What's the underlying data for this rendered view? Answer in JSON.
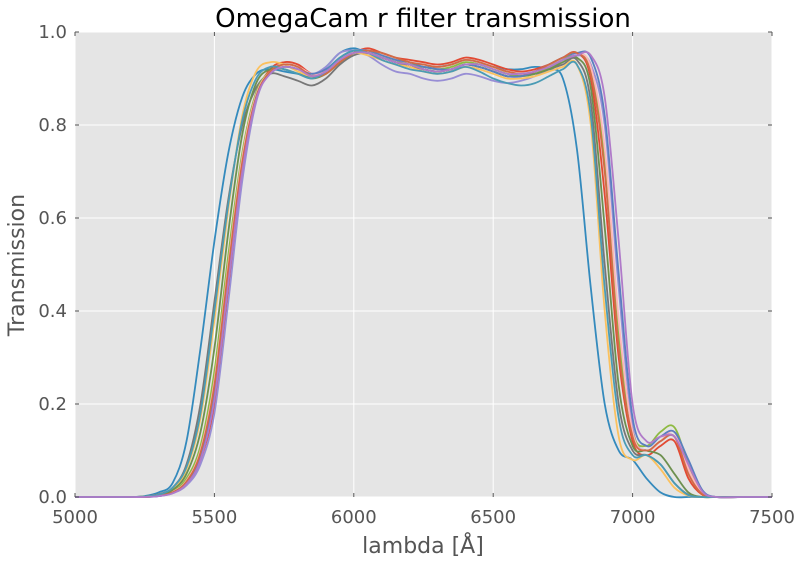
{
  "chart_data": {
    "type": "line",
    "title": "OmegaCam r filter transmission",
    "xlabel": "lambda [Å]",
    "ylabel": "Transmission",
    "xlim": [
      5000,
      7500
    ],
    "ylim": [
      0.0,
      1.0
    ],
    "xticks": [
      5000,
      5500,
      6000,
      6500,
      7000,
      7500
    ],
    "yticks": [
      0.0,
      0.2,
      0.4,
      0.6,
      0.8,
      1.0
    ],
    "xtick_labels": [
      "5000",
      "5500",
      "6000",
      "6500",
      "7000",
      "7500"
    ],
    "ytick_labels": [
      "0.0",
      "0.2",
      "0.4",
      "0.6",
      "0.8",
      "1.0"
    ],
    "grid": true,
    "background": "#e5e5e5",
    "x": [
      5000,
      5100,
      5200,
      5250,
      5300,
      5350,
      5400,
      5450,
      5500,
      5550,
      5600,
      5650,
      5700,
      5750,
      5800,
      5850,
      5900,
      5950,
      6000,
      6050,
      6100,
      6150,
      6200,
      6250,
      6300,
      6350,
      6400,
      6450,
      6500,
      6550,
      6600,
      6650,
      6700,
      6750,
      6800,
      6850,
      6900,
      6950,
      7000,
      7050,
      7100,
      7150,
      7200,
      7250,
      7300,
      7400,
      7500
    ],
    "series": [
      {
        "color": "#348abd",
        "values": [
          0.0,
          0.0,
          0.0,
          0.002,
          0.01,
          0.03,
          0.12,
          0.32,
          0.55,
          0.74,
          0.86,
          0.91,
          0.92,
          0.915,
          0.91,
          0.905,
          0.925,
          0.955,
          0.965,
          0.955,
          0.945,
          0.935,
          0.93,
          0.925,
          0.925,
          0.93,
          0.94,
          0.935,
          0.925,
          0.92,
          0.92,
          0.925,
          0.92,
          0.9,
          0.75,
          0.45,
          0.2,
          0.1,
          0.08,
          0.04,
          0.01,
          0.0,
          0.0,
          0.0,
          0.0,
          0.0,
          0.0
        ]
      },
      {
        "color": "#e24a33",
        "values": [
          0.0,
          0.0,
          0.0,
          0.0,
          0.003,
          0.01,
          0.03,
          0.08,
          0.2,
          0.45,
          0.7,
          0.86,
          0.92,
          0.935,
          0.93,
          0.91,
          0.915,
          0.935,
          0.955,
          0.965,
          0.955,
          0.945,
          0.94,
          0.935,
          0.93,
          0.935,
          0.945,
          0.94,
          0.93,
          0.92,
          0.915,
          0.92,
          0.93,
          0.945,
          0.955,
          0.9,
          0.65,
          0.3,
          0.12,
          0.09,
          0.11,
          0.12,
          0.04,
          0.005,
          0.0,
          0.0,
          0.0
        ]
      },
      {
        "color": "#988ed5",
        "values": [
          0.0,
          0.0,
          0.0,
          0.0,
          0.002,
          0.008,
          0.025,
          0.07,
          0.18,
          0.42,
          0.68,
          0.85,
          0.915,
          0.93,
          0.925,
          0.91,
          0.925,
          0.955,
          0.96,
          0.95,
          0.93,
          0.915,
          0.91,
          0.9,
          0.895,
          0.9,
          0.91,
          0.905,
          0.895,
          0.89,
          0.895,
          0.905,
          0.92,
          0.94,
          0.95,
          0.93,
          0.8,
          0.45,
          0.15,
          0.1,
          0.12,
          0.13,
          0.06,
          0.01,
          0.0,
          0.0,
          0.0
        ]
      },
      {
        "color": "#777777",
        "values": [
          0.0,
          0.0,
          0.0,
          0.001,
          0.006,
          0.02,
          0.07,
          0.2,
          0.42,
          0.64,
          0.8,
          0.88,
          0.91,
          0.905,
          0.895,
          0.885,
          0.9,
          0.93,
          0.95,
          0.955,
          0.945,
          0.935,
          0.925,
          0.92,
          0.915,
          0.92,
          0.93,
          0.925,
          0.915,
          0.905,
          0.905,
          0.91,
          0.92,
          0.93,
          0.94,
          0.85,
          0.5,
          0.2,
          0.1,
          0.09,
          0.07,
          0.03,
          0.005,
          0.0,
          0.0,
          0.0,
          0.0
        ]
      },
      {
        "color": "#fbc15e",
        "values": [
          0.0,
          0.0,
          0.0,
          0.001,
          0.005,
          0.018,
          0.06,
          0.17,
          0.38,
          0.62,
          0.82,
          0.915,
          0.935,
          0.93,
          0.915,
          0.905,
          0.915,
          0.94,
          0.955,
          0.95,
          0.94,
          0.93,
          0.925,
          0.915,
          0.91,
          0.915,
          0.925,
          0.92,
          0.91,
          0.9,
          0.9,
          0.905,
          0.915,
          0.925,
          0.93,
          0.8,
          0.4,
          0.13,
          0.08,
          0.09,
          0.06,
          0.02,
          0.003,
          0.0,
          0.0,
          0.0,
          0.0
        ]
      },
      {
        "color": "#8eba42",
        "values": [
          0.0,
          0.0,
          0.0,
          0.0,
          0.003,
          0.012,
          0.04,
          0.11,
          0.27,
          0.52,
          0.74,
          0.87,
          0.915,
          0.925,
          0.92,
          0.905,
          0.91,
          0.935,
          0.955,
          0.96,
          0.95,
          0.94,
          0.93,
          0.925,
          0.92,
          0.925,
          0.935,
          0.93,
          0.92,
          0.91,
          0.905,
          0.91,
          0.925,
          0.94,
          0.955,
          0.92,
          0.72,
          0.35,
          0.14,
          0.11,
          0.14,
          0.15,
          0.07,
          0.01,
          0.0,
          0.0,
          0.0
        ]
      },
      {
        "color": "#ffb5b8",
        "values": [
          0.0,
          0.0,
          0.0,
          0.0,
          0.003,
          0.011,
          0.035,
          0.1,
          0.25,
          0.5,
          0.73,
          0.865,
          0.915,
          0.93,
          0.925,
          0.91,
          0.915,
          0.94,
          0.96,
          0.96,
          0.95,
          0.94,
          0.935,
          0.93,
          0.925,
          0.93,
          0.94,
          0.935,
          0.925,
          0.915,
          0.91,
          0.915,
          0.93,
          0.945,
          0.955,
          0.925,
          0.75,
          0.38,
          0.14,
          0.1,
          0.12,
          0.14,
          0.06,
          0.008,
          0.0,
          0.0,
          0.0
        ]
      },
      {
        "color": "#6d904f",
        "values": [
          0.0,
          0.0,
          0.0,
          0.001,
          0.004,
          0.015,
          0.05,
          0.14,
          0.32,
          0.57,
          0.78,
          0.89,
          0.92,
          0.92,
          0.91,
          0.9,
          0.91,
          0.935,
          0.955,
          0.955,
          0.945,
          0.935,
          0.93,
          0.92,
          0.915,
          0.92,
          0.93,
          0.925,
          0.915,
          0.905,
          0.905,
          0.91,
          0.92,
          0.935,
          0.945,
          0.88,
          0.58,
          0.24,
          0.11,
          0.1,
          0.09,
          0.05,
          0.01,
          0.0,
          0.0,
          0.0,
          0.0
        ]
      },
      {
        "color": "#5a7fc0",
        "values": [
          0.0,
          0.0,
          0.0,
          0.0,
          0.002,
          0.009,
          0.03,
          0.085,
          0.22,
          0.47,
          0.71,
          0.86,
          0.91,
          0.925,
          0.92,
          0.91,
          0.92,
          0.945,
          0.96,
          0.96,
          0.95,
          0.94,
          0.935,
          0.925,
          0.92,
          0.92,
          0.93,
          0.925,
          0.915,
          0.905,
          0.905,
          0.915,
          0.93,
          0.945,
          0.955,
          0.945,
          0.82,
          0.48,
          0.17,
          0.11,
          0.13,
          0.14,
          0.08,
          0.015,
          0.0,
          0.0,
          0.0
        ]
      },
      {
        "color": "#d16b47",
        "values": [
          0.0,
          0.0,
          0.0,
          0.0,
          0.003,
          0.01,
          0.033,
          0.095,
          0.24,
          0.49,
          0.72,
          0.86,
          0.915,
          0.93,
          0.925,
          0.905,
          0.91,
          0.935,
          0.955,
          0.96,
          0.955,
          0.945,
          0.935,
          0.93,
          0.925,
          0.93,
          0.94,
          0.935,
          0.925,
          0.915,
          0.91,
          0.915,
          0.93,
          0.945,
          0.955,
          0.91,
          0.7,
          0.32,
          0.13,
          0.1,
          0.12,
          0.13,
          0.05,
          0.006,
          0.0,
          0.0,
          0.0
        ]
      },
      {
        "color": "#4a9bb5",
        "values": [
          0.0,
          0.0,
          0.0,
          0.001,
          0.005,
          0.02,
          0.065,
          0.18,
          0.4,
          0.63,
          0.81,
          0.9,
          0.925,
          0.92,
          0.91,
          0.9,
          0.915,
          0.945,
          0.96,
          0.955,
          0.94,
          0.93,
          0.92,
          0.915,
          0.91,
          0.915,
          0.925,
          0.915,
          0.9,
          0.89,
          0.885,
          0.89,
          0.905,
          0.92,
          0.93,
          0.82,
          0.45,
          0.17,
          0.09,
          0.09,
          0.07,
          0.03,
          0.004,
          0.0,
          0.0,
          0.0,
          0.0
        ]
      },
      {
        "color": "#b07ac9",
        "values": [
          0.0,
          0.0,
          0.0,
          0.0,
          0.002,
          0.008,
          0.028,
          0.08,
          0.21,
          0.46,
          0.7,
          0.855,
          0.91,
          0.925,
          0.92,
          0.905,
          0.915,
          0.94,
          0.955,
          0.955,
          0.945,
          0.935,
          0.93,
          0.92,
          0.915,
          0.92,
          0.93,
          0.93,
          0.92,
          0.91,
          0.91,
          0.915,
          0.925,
          0.94,
          0.95,
          0.95,
          0.86,
          0.55,
          0.2,
          0.12,
          0.13,
          0.13,
          0.07,
          0.012,
          0.0,
          0.0,
          0.0
        ]
      }
    ]
  }
}
